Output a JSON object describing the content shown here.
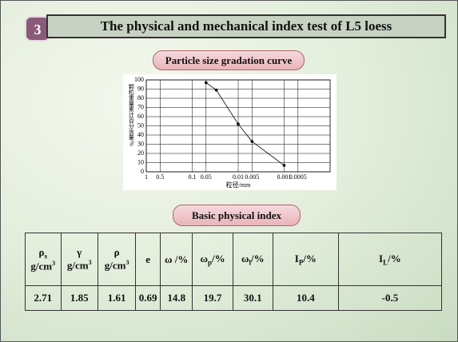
{
  "badge": "3",
  "title": "The physical and mechanical index test of L5 loess",
  "chart_label": "Particle size gradation curve",
  "chart_data": {
    "type": "line",
    "log_x": true,
    "grid": true,
    "ylabel": "颗粒重量累计百分含量/%",
    "xlabel": "粒径/mm",
    "xlim": [
      1,
      0.0001
    ],
    "ylim": [
      0,
      100
    ],
    "xticks": [
      1,
      0.5,
      0.1,
      0.05,
      0.01,
      0.005,
      0.001,
      0.0005
    ],
    "yticks": [
      0,
      10,
      20,
      30,
      40,
      50,
      60,
      70,
      80,
      90,
      100
    ],
    "series": [
      {
        "color": "#000000",
        "x": [
          0.05,
          0.03,
          0.01,
          0.005,
          0.001
        ],
        "values": [
          97,
          89,
          52,
          33,
          7
        ]
      }
    ]
  },
  "table_label": "Basic physical index",
  "table": {
    "header": [
      {
        "symbol": "ρ",
        "sub": "s",
        "unit": "g/cm",
        "unit_sup": "3"
      },
      {
        "symbol": "γ",
        "unit": "g/cm",
        "unit_sup": "3"
      },
      {
        "symbol": "ρ",
        "unit": "g/cm",
        "unit_sup": "3"
      },
      {
        "symbol": "e"
      },
      {
        "symbol": "ω /%"
      },
      {
        "symbol": "ω",
        "sub": "p",
        "suffix": "/%"
      },
      {
        "symbol": "ω",
        "sub": "l",
        "suffix": "/%"
      },
      {
        "symbol": "I",
        "sub": "P",
        "suffix": "/%"
      },
      {
        "symbol": "I",
        "sub": "L",
        "suffix": "/%"
      }
    ],
    "rows": [
      [
        2.71,
        1.85,
        1.61,
        0.69,
        14.8,
        19.7,
        30.1,
        10.4,
        -0.5
      ]
    ]
  }
}
